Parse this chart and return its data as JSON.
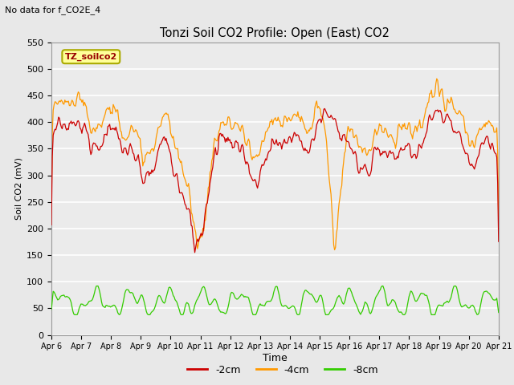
{
  "title": "Tonzi Soil CO2 Profile: Open (East) CO2",
  "subtitle": "No data for f_CO2E_4",
  "ylabel": "Soil CO2 (mV)",
  "xlabel": "Time",
  "legend_label": "TZ_soilco2",
  "ylim": [
    0,
    550
  ],
  "series_labels": [
    "-2cm",
    "-4cm",
    "-8cm"
  ],
  "series_colors": [
    "#cc0000",
    "#ff9900",
    "#33cc00"
  ],
  "background_color": "#e8e8e8",
  "plot_bg_color": "#ebebeb",
  "grid_color": "#ffffff",
  "xtick_labels": [
    "Apr 6",
    "Apr 7",
    "Apr 8",
    "Apr 9",
    "Apr 10",
    "Apr 11",
    "Apr 12",
    "Apr 13",
    "Apr 14",
    "Apr 15",
    "Apr 16",
    "Apr 17",
    "Apr 18",
    "Apr 19",
    "Apr 20",
    "Apr 21"
  ],
  "yticks": [
    0,
    50,
    100,
    150,
    200,
    250,
    300,
    350,
    400,
    450,
    500,
    550
  ],
  "n_points": 500
}
